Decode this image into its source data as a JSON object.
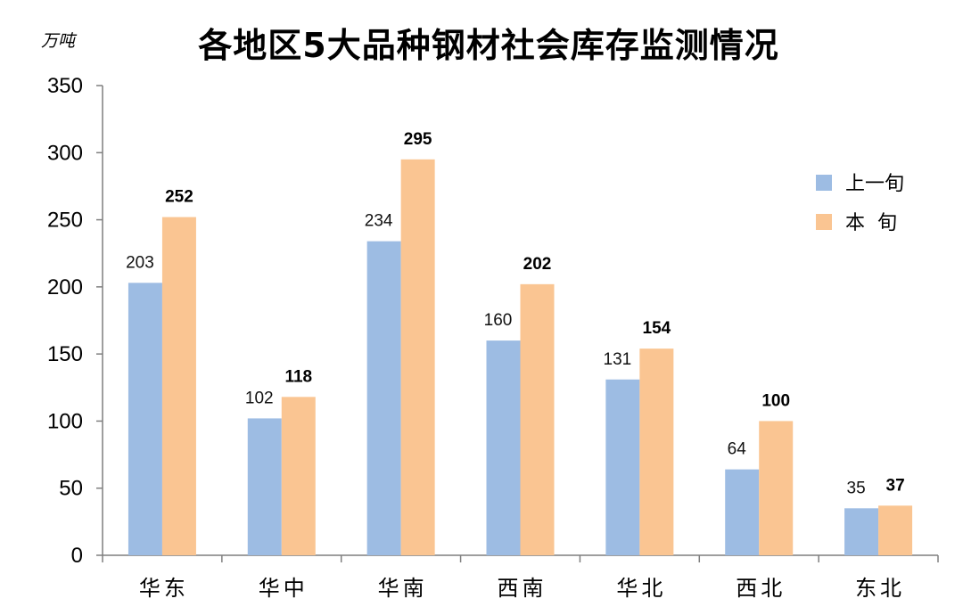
{
  "chart_data": {
    "type": "bar",
    "title": "各地区5大品种钢材社会库存监测情况",
    "ylabel": "万吨",
    "ylim": [
      0,
      350
    ],
    "yticks": [
      0,
      50,
      100,
      150,
      200,
      250,
      300,
      350
    ],
    "categories": [
      "华东",
      "华中",
      "华南",
      "西南",
      "华北",
      "西北",
      "东北"
    ],
    "series": [
      {
        "name": "上一旬",
        "values": [
          203,
          102,
          234,
          160,
          131,
          64,
          35
        ],
        "color": "#9DBCE3",
        "label_style": "normal"
      },
      {
        "name": "本  旬",
        "values": [
          252,
          118,
          295,
          202,
          154,
          100,
          37
        ],
        "color": "#FAC592",
        "label_style": "bold"
      }
    ],
    "legend_position": "right",
    "grid": false
  }
}
